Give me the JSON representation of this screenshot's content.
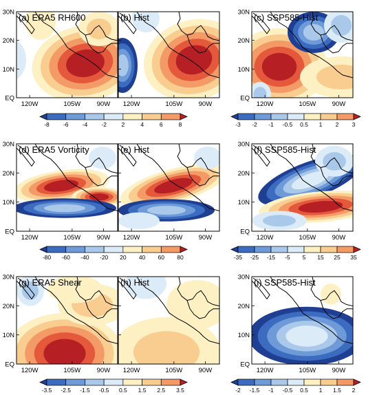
{
  "chart_data": [
    {
      "type": "contour-map",
      "label": "(a) ERA5 RH600"
    },
    {
      "type": "contour-map",
      "label": "(b) Hist"
    },
    {
      "type": "contour-map",
      "label": "(c) SSP585-Hist"
    },
    {
      "type": "contour-map",
      "label": "(d) ERA5 Vorticity"
    },
    {
      "type": "contour-map",
      "label": "(e) Hist"
    },
    {
      "type": "contour-map",
      "label": "(f) SSP585-Hist"
    },
    {
      "type": "contour-map",
      "label": "(g) ERA5 Shear"
    },
    {
      "type": "contour-map",
      "label": "(h) Hist"
    },
    {
      "type": "contour-map",
      "label": "(i) SSP585-Hist"
    }
  ],
  "axes": {
    "x_ticks": [
      "120W",
      "105W",
      "90W"
    ],
    "y_ticks": [
      "30N",
      "20N",
      "10N",
      "EQ"
    ]
  },
  "colorbars": [
    {
      "row": 0,
      "span": "ab",
      "levels": [
        "-8",
        "-6",
        "-4",
        "-2",
        "2",
        "4",
        "6",
        "8"
      ]
    },
    {
      "row": 0,
      "span": "c",
      "levels": [
        "-3",
        "-2",
        "-1",
        "-0.5",
        "0.5",
        "1",
        "2",
        "3"
      ]
    },
    {
      "row": 1,
      "span": "de",
      "levels": [
        "-80",
        "-60",
        "-40",
        "-20",
        "20",
        "40",
        "60",
        "80"
      ]
    },
    {
      "row": 1,
      "span": "f",
      "levels": [
        "-35",
        "-25",
        "-15",
        "-5",
        "5",
        "15",
        "25",
        "35"
      ]
    },
    {
      "row": 2,
      "span": "gh",
      "levels": [
        "-3.5",
        "-2.5",
        "-1.5",
        "-0.5",
        "0.5",
        "1.5",
        "2.5",
        "3.5"
      ]
    },
    {
      "row": 2,
      "span": "i",
      "levels": [
        "-2",
        "-1.5",
        "-1",
        "-0.5",
        "0.5",
        "1",
        "1.5",
        "2"
      ]
    }
  ],
  "colors": {
    "neg": [
      "#1f3f93",
      "#3b6cc0",
      "#6e9bd8",
      "#a9c8ea",
      "#dcebf8"
    ],
    "pos": [
      "#fdf0c2",
      "#f9cc90",
      "#f39a66",
      "#e4583c",
      "#b61f24"
    ],
    "zero": "#ffffff",
    "coast": "#000000"
  }
}
